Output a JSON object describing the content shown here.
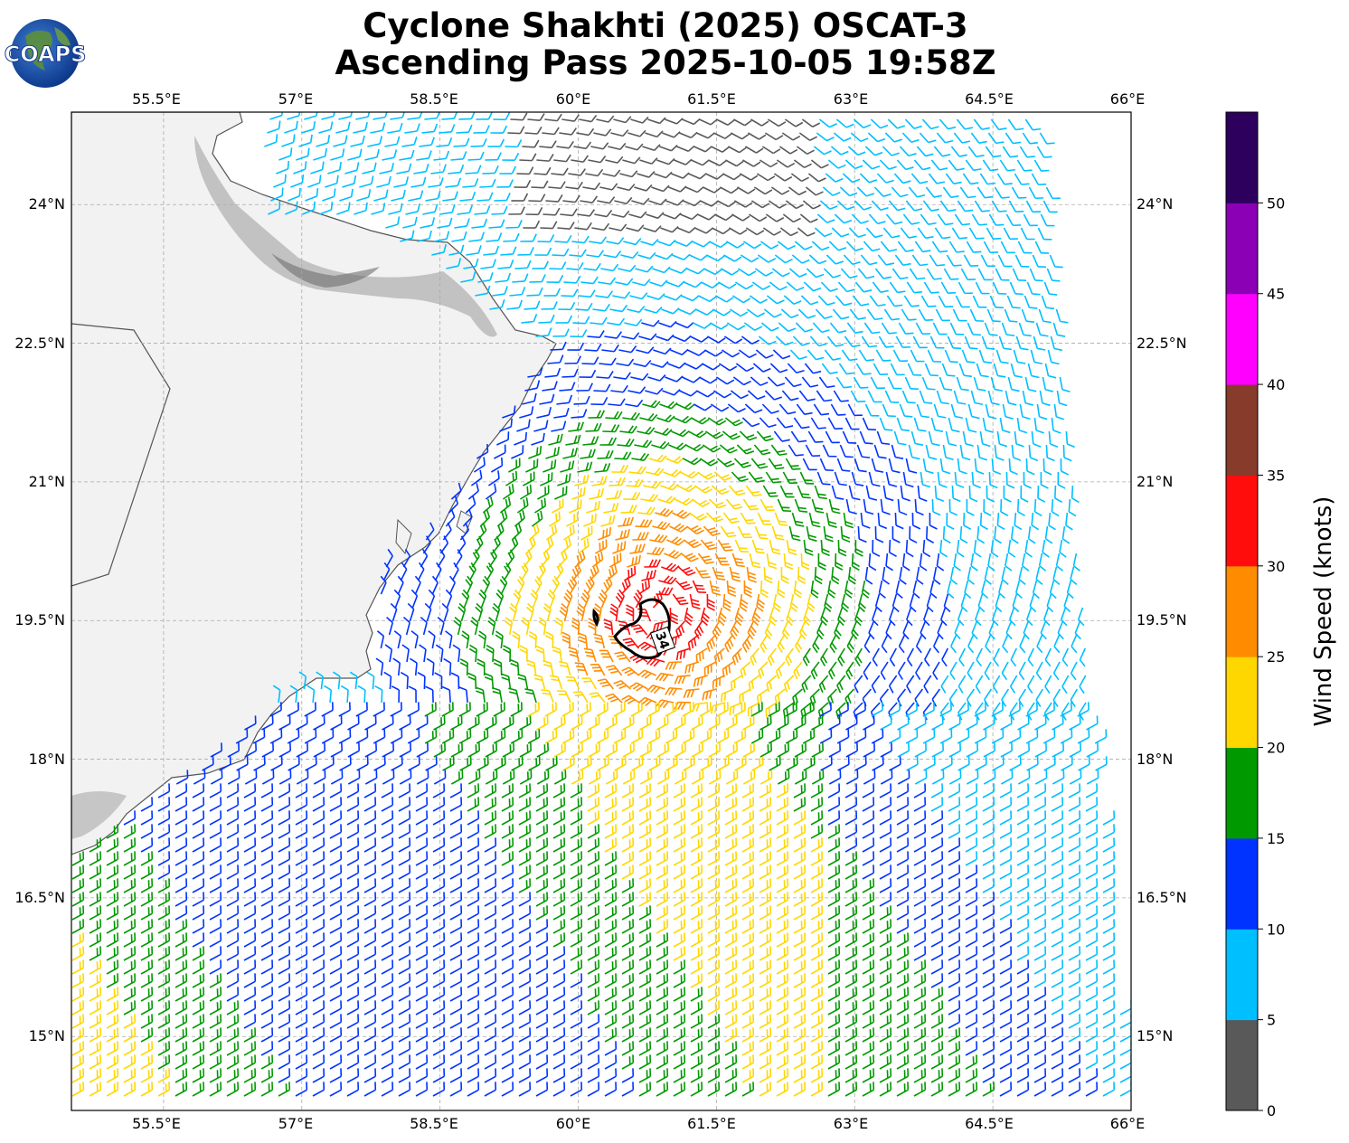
{
  "title_line1": "Cyclone Shakhti (2025) OSCAT-3",
  "title_line2": "Ascending Pass 2025-10-05 19:58Z",
  "logo_text": "COAPS",
  "lon_ticks": [
    "55.5°E",
    "57°E",
    "58.5°E",
    "60°E",
    "61.5°E",
    "63°E",
    "64.5°E",
    "66°E"
  ],
  "lat_ticks": [
    "24°N",
    "22.5°N",
    "21°N",
    "19.5°N",
    "18°N",
    "16.5°N",
    "15°N"
  ],
  "colorbar": {
    "label": "Wind Speed (knots)",
    "ticks": [
      "0",
      "5",
      "10",
      "15",
      "20",
      "25",
      "30",
      "35",
      "40",
      "45",
      "50"
    ],
    "colors": [
      "#595959",
      "#00bfff",
      "#0033ff",
      "#009900",
      "#ffd700",
      "#ff8c00",
      "#ff0d0d",
      "#873b2b",
      "#ff00ff",
      "#8b00b5",
      "#2d005e"
    ]
  },
  "contour_label": "34",
  "map": {
    "lon_range": [
      54.5,
      66.0
    ],
    "lat_range": [
      14.2,
      25.0
    ],
    "storm_center": {
      "lon": 60.9,
      "lat": 19.6
    }
  }
}
